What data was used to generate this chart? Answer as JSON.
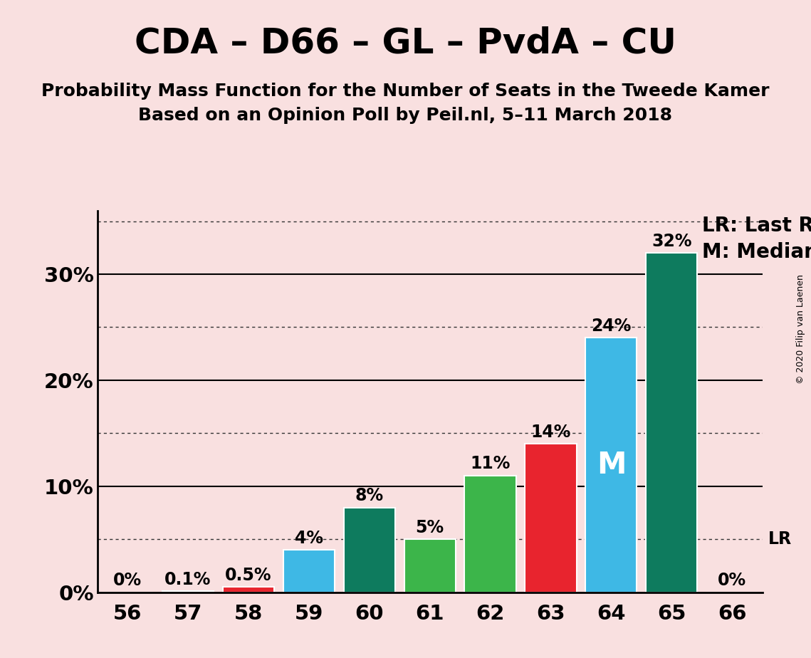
{
  "title": "CDA – D66 – GL – PvdA – CU",
  "subtitle1": "Probability Mass Function for the Number of Seats in the Tweede Kamer",
  "subtitle2": "Based on an Opinion Poll by Peil.nl, 5–11 March 2018",
  "copyright": "© 2020 Filip van Laenen",
  "categories": [
    56,
    57,
    58,
    59,
    60,
    61,
    62,
    63,
    64,
    65,
    66
  ],
  "values": [
    0.0,
    0.1,
    0.5,
    4.0,
    8.0,
    5.0,
    11.0,
    14.0,
    24.0,
    32.0,
    0.0
  ],
  "labels": [
    "0%",
    "0.1%",
    "0.5%",
    "4%",
    "8%",
    "5%",
    "11%",
    "14%",
    "24%",
    "32%",
    "0%"
  ],
  "colors": [
    "#f5c5c5",
    "#f5c5c5",
    "#e8242e",
    "#3eb8e5",
    "#0e7b5e",
    "#3cb54a",
    "#3cb54a",
    "#e8242e",
    "#3eb8e5",
    "#0e7b5e",
    "#f5c5c5"
  ],
  "background_color": "#f9e0e0",
  "bar_edge_color": "white",
  "median_bar_idx": 8,
  "lr_bar_idx": 10,
  "median_label": "M",
  "lr_label": "LR",
  "legend_lr": "LR: Last Result",
  "legend_m": "M: Median",
  "ylim": [
    0,
    36
  ],
  "major_yticks": [
    10,
    20,
    30
  ],
  "dotted_yticks": [
    5,
    15,
    25,
    35
  ],
  "zero_ytick": 0,
  "title_fontsize": 36,
  "subtitle_fontsize": 18,
  "label_fontsize": 17,
  "tick_fontsize": 21,
  "legend_fontsize": 20,
  "median_label_color": "white",
  "median_label_fontsize": 30
}
